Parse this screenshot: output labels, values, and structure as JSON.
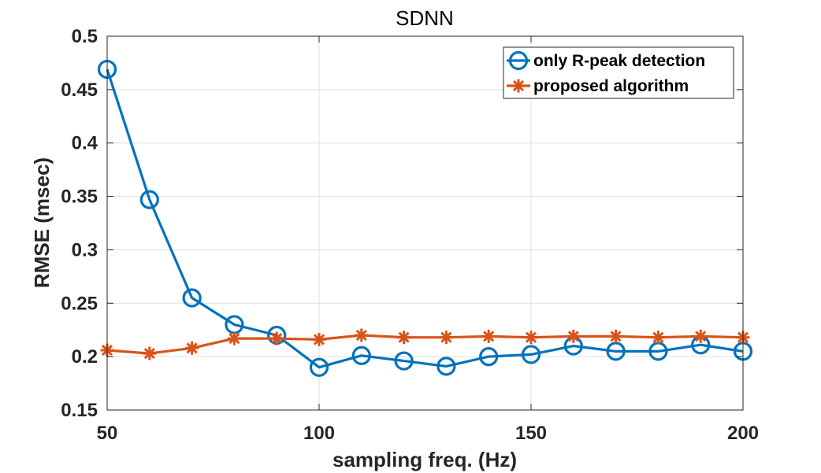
{
  "chart_data": {
    "type": "line",
    "title": "SDNN",
    "xlabel": "sampling freq. (Hz)",
    "ylabel": "RMSE (msec)",
    "xlim": [
      50,
      200
    ],
    "ylim": [
      0.15,
      0.5
    ],
    "xticks": [
      50,
      100,
      150,
      200
    ],
    "xtick_labels": [
      "50",
      "100",
      "150",
      "200"
    ],
    "yticks": [
      0.15,
      0.2,
      0.25,
      0.3,
      0.35,
      0.4,
      0.45,
      0.5
    ],
    "ytick_labels": [
      "0.15",
      "0.2",
      "0.25",
      "0.3",
      "0.35",
      "0.4",
      "0.45",
      "0.5"
    ],
    "grid": true,
    "legend_position": "top-right",
    "x": [
      50,
      60,
      70,
      80,
      90,
      100,
      110,
      120,
      130,
      140,
      150,
      160,
      170,
      180,
      190,
      200
    ],
    "series": [
      {
        "name": "only R-peak detection",
        "color": "#0072BD",
        "marker": "circle",
        "values": [
          0.469,
          0.347,
          0.255,
          0.23,
          0.22,
          0.19,
          0.201,
          0.196,
          0.191,
          0.2,
          0.202,
          0.21,
          0.205,
          0.205,
          0.211,
          0.205
        ]
      },
      {
        "name": "proposed algorithm",
        "color": "#D95319",
        "marker": "asterisk",
        "values": [
          0.206,
          0.203,
          0.208,
          0.217,
          0.217,
          0.216,
          0.22,
          0.218,
          0.218,
          0.219,
          0.218,
          0.219,
          0.219,
          0.218,
          0.219,
          0.218
        ]
      }
    ]
  }
}
